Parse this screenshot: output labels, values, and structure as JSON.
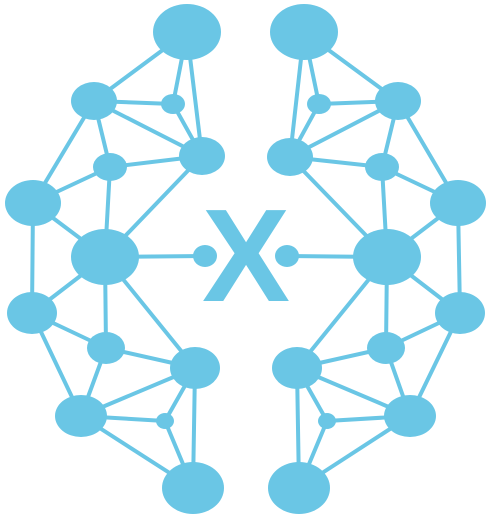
{
  "logo": {
    "glyph": "X",
    "color": "#6ac6e5",
    "background": "#ffffff",
    "icon_name": "brain-network-x-logo"
  }
}
